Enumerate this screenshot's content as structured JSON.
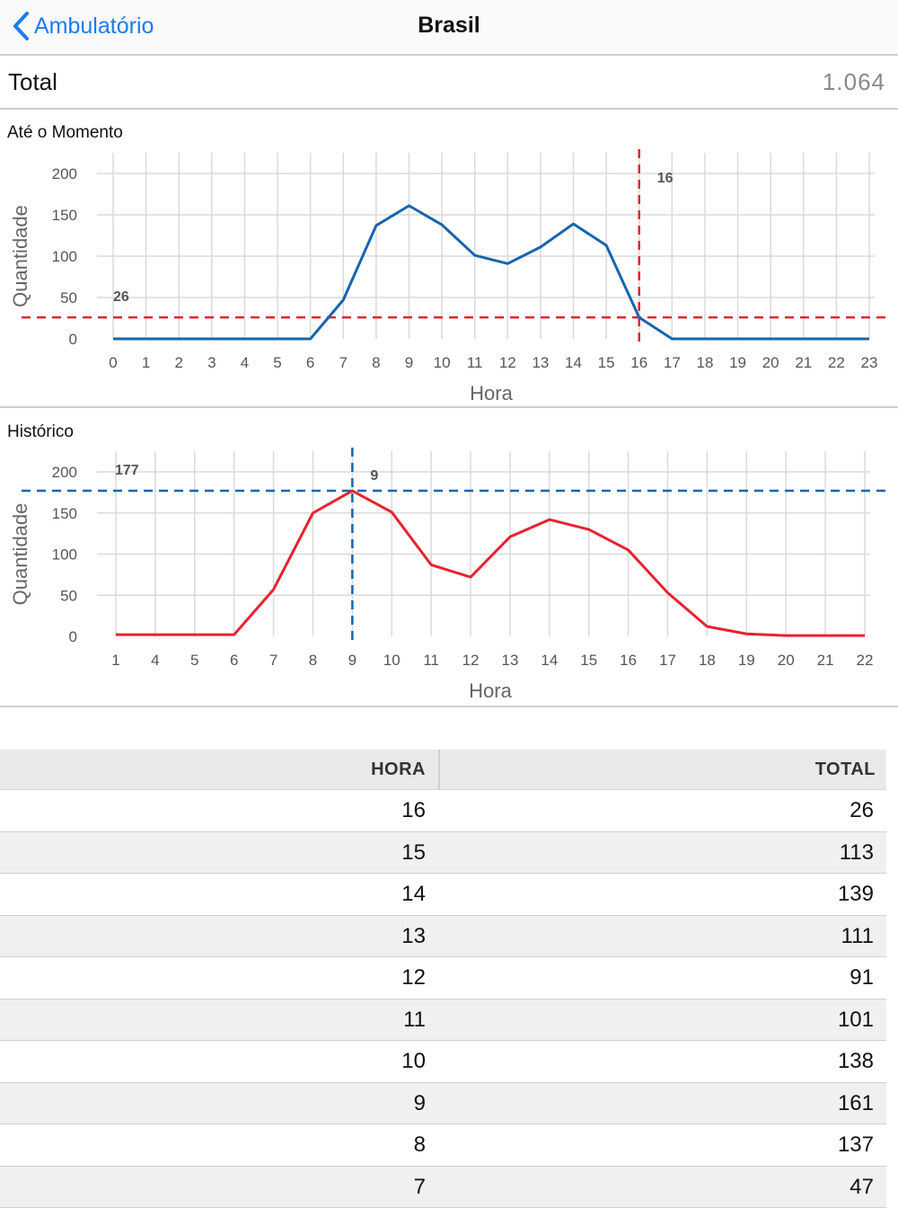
{
  "navbar": {
    "back_label": "Ambulatório",
    "title": "Brasil"
  },
  "total": {
    "label": "Total",
    "value": "1.064"
  },
  "colors": {
    "blue": "#1565b0",
    "red": "#e8222e",
    "link": "#1a7cf0"
  },
  "chart_data": [
    {
      "type": "line",
      "title": "Até o Momento",
      "xlabel": "Hora",
      "ylabel": "Quantidade",
      "x": [
        0,
        1,
        2,
        3,
        4,
        5,
        6,
        7,
        8,
        9,
        10,
        11,
        12,
        13,
        14,
        15,
        16,
        17,
        18,
        19,
        20,
        21,
        22,
        23
      ],
      "series": [
        {
          "color": "#1565b0",
          "values": [
            0,
            0,
            0,
            0,
            0,
            0,
            0,
            47,
            137,
            161,
            138,
            101,
            91,
            111,
            139,
            113,
            26,
            0,
            0,
            0,
            0,
            0,
            0,
            0
          ]
        }
      ],
      "ylim": [
        0,
        200
      ],
      "yticks": [
        0,
        50,
        100,
        150,
        200
      ],
      "grid": true,
      "annotations": {
        "hline": {
          "value": 26,
          "label": "26",
          "color": "#e8222e"
        },
        "vline": {
          "value": 16,
          "label": "16",
          "color": "#e8222e"
        }
      }
    },
    {
      "type": "line",
      "title": "Histórico",
      "xlabel": "Hora",
      "ylabel": "Quantidade",
      "x": [
        1,
        4,
        5,
        6,
        7,
        8,
        9,
        10,
        11,
        12,
        13,
        14,
        15,
        16,
        17,
        18,
        19,
        20,
        21,
        22
      ],
      "series": [
        {
          "color": "#e8222e",
          "values": [
            2,
            2,
            2,
            2,
            57,
            150,
            177,
            151,
            87,
            72,
            121,
            142,
            130,
            105,
            53,
            12,
            3,
            1,
            1,
            1
          ]
        }
      ],
      "ylim": [
        0,
        200
      ],
      "yticks": [
        0,
        50,
        100,
        150,
        200
      ],
      "grid": true,
      "annotations": {
        "hline": {
          "value": 177,
          "label": "177",
          "color": "#1565b0"
        },
        "vline": {
          "value": 9,
          "label": "9",
          "color": "#1565b0"
        }
      }
    }
  ],
  "table": {
    "headers": {
      "hora": "HORA",
      "total": "TOTAL"
    },
    "rows": [
      {
        "hora": "16",
        "total": "26"
      },
      {
        "hora": "15",
        "total": "113"
      },
      {
        "hora": "14",
        "total": "139"
      },
      {
        "hora": "13",
        "total": "111"
      },
      {
        "hora": "12",
        "total": "91"
      },
      {
        "hora": "11",
        "total": "101"
      },
      {
        "hora": "10",
        "total": "138"
      },
      {
        "hora": "9",
        "total": "161"
      },
      {
        "hora": "8",
        "total": "137"
      },
      {
        "hora": "7",
        "total": "47"
      }
    ]
  }
}
